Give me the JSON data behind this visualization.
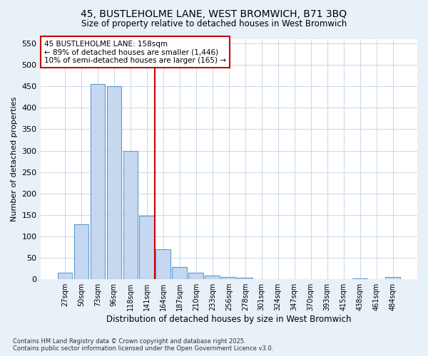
{
  "title_line1": "45, BUSTLEHOLME LANE, WEST BROMWICH, B71 3BQ",
  "title_line2": "Size of property relative to detached houses in West Bromwich",
  "xlabel": "Distribution of detached houses by size in West Bromwich",
  "ylabel": "Number of detached properties",
  "footnote": "Contains HM Land Registry data © Crown copyright and database right 2025.\nContains public sector information licensed under the Open Government Licence v3.0.",
  "bar_labels": [
    "27sqm",
    "50sqm",
    "73sqm",
    "96sqm",
    "118sqm",
    "141sqm",
    "164sqm",
    "187sqm",
    "210sqm",
    "233sqm",
    "256sqm",
    "278sqm",
    "301sqm",
    "324sqm",
    "347sqm",
    "370sqm",
    "393sqm",
    "415sqm",
    "438sqm",
    "461sqm",
    "484sqm"
  ],
  "bar_values": [
    15,
    128,
    455,
    450,
    300,
    148,
    70,
    28,
    15,
    8,
    5,
    3,
    1,
    1,
    0,
    0,
    0,
    0,
    2,
    1,
    5
  ],
  "bar_color": "#c5d8ef",
  "bar_edge_color": "#5b9bd5",
  "grid_color": "#c8d8eb",
  "background_color": "#e8f0f8",
  "plot_bg_color": "#ffffff",
  "vline_color": "#cc0000",
  "vline_x": 5.5,
  "annotation_text": "45 BUSTLEHOLME LANE: 158sqm\n← 89% of detached houses are smaller (1,446)\n10% of semi-detached houses are larger (165) →",
  "annotation_box_color": "#ffffff",
  "annotation_box_edge": "#cc0000",
  "ylim": [
    0,
    560
  ],
  "yticks": [
    0,
    50,
    100,
    150,
    200,
    250,
    300,
    350,
    400,
    450,
    500,
    550
  ]
}
